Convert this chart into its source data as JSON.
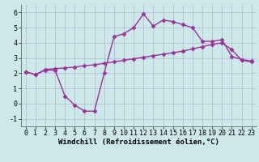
{
  "line1_x": [
    0,
    1,
    2,
    3,
    4,
    5,
    6,
    7,
    8,
    9,
    10,
    11,
    12,
    13,
    14,
    15,
    16,
    17,
    18,
    19,
    20,
    21,
    22,
    23
  ],
  "line1_y": [
    2.1,
    1.9,
    2.2,
    2.2,
    0.5,
    -0.1,
    -0.5,
    -0.5,
    2.0,
    4.4,
    4.6,
    5.0,
    5.9,
    5.1,
    5.5,
    5.4,
    5.2,
    5.0,
    4.1,
    4.1,
    4.2,
    3.1,
    2.9,
    2.8
  ],
  "line2_x": [
    0,
    1,
    2,
    3,
    4,
    5,
    6,
    7,
    8,
    9,
    10,
    11,
    12,
    13,
    14,
    15,
    16,
    17,
    18,
    19,
    20,
    21,
    22,
    23
  ],
  "line2_y": [
    2.1,
    1.9,
    2.25,
    2.3,
    2.35,
    2.4,
    2.5,
    2.55,
    2.65,
    2.75,
    2.85,
    2.95,
    3.05,
    3.15,
    3.25,
    3.35,
    3.45,
    3.6,
    3.75,
    3.9,
    4.0,
    3.55,
    2.85,
    2.75
  ],
  "line_color": "#993399",
  "marker": "D",
  "markersize": 2.5,
  "linewidth": 1.0,
  "bg_color": "#cce8e8",
  "grid_color": "#aaaacc",
  "xlabel": "Windchill (Refroidissement éolien,°C)",
  "xlim": [
    -0.5,
    23.5
  ],
  "ylim": [
    -1.5,
    6.5
  ],
  "xticks": [
    0,
    1,
    2,
    3,
    4,
    5,
    6,
    7,
    8,
    9,
    10,
    11,
    12,
    13,
    14,
    15,
    16,
    17,
    18,
    19,
    20,
    21,
    22,
    23
  ],
  "yticks": [
    -1,
    0,
    1,
    2,
    3,
    4,
    5,
    6
  ],
  "tick_fontsize": 6,
  "xlabel_fontsize": 6.5
}
